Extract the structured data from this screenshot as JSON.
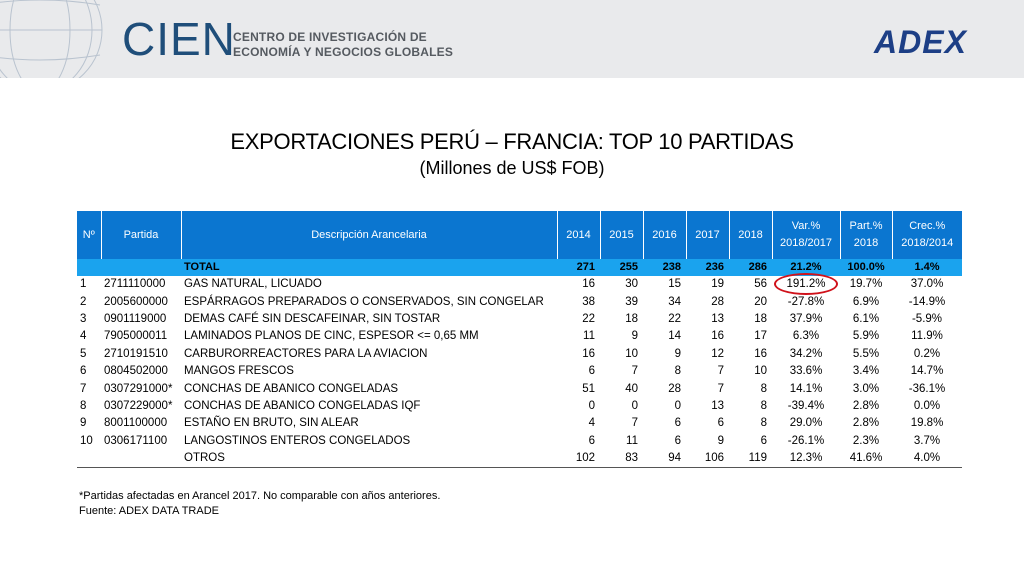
{
  "header": {
    "brand_name": "CIEN",
    "brand_sub_line1": "CENTRO DE INVESTIGACIÓN DE",
    "brand_sub_line2": "ECONOMÍA Y NEGOCIOS GLOBALES",
    "partner_name": "ADEX"
  },
  "title": "EXPORTACIONES PERÚ – FRANCIA: TOP 10 PARTIDAS",
  "subtitle": "(Millones de US$ FOB)",
  "table": {
    "columns": [
      "Nº",
      "Partida",
      "Descripción Arancelaria",
      "2014",
      "2015",
      "2016",
      "2017",
      "2018",
      "Var.%\n2018/2017",
      "Part.%\n2018",
      "Crec.%\n2018/2014"
    ],
    "total": {
      "label": "TOTAL",
      "v2014": "271",
      "v2015": "255",
      "v2016": "238",
      "v2017": "236",
      "v2018": "286",
      "var": "21.2%",
      "part": "100.0%",
      "crec": "1.4%"
    },
    "rows": [
      {
        "n": "1",
        "partida": "2711110000",
        "desc": "GAS NATURAL, LICUADO",
        "v2014": "16",
        "v2015": "30",
        "v2016": "15",
        "v2017": "19",
        "v2018": "56",
        "var": "191.2%",
        "part": "19.7%",
        "crec": "37.0%"
      },
      {
        "n": "2",
        "partida": "2005600000",
        "desc": "ESPÁRRAGOS PREPARADOS O CONSERVADOS, SIN CONGELAR",
        "v2014": "38",
        "v2015": "39",
        "v2016": "34",
        "v2017": "28",
        "v2018": "20",
        "var": "-27.8%",
        "part": "6.9%",
        "crec": "-14.9%"
      },
      {
        "n": "3",
        "partida": "0901119000",
        "desc": "DEMAS CAFÉ SIN DESCAFEINAR, SIN TOSTAR",
        "v2014": "22",
        "v2015": "18",
        "v2016": "22",
        "v2017": "13",
        "v2018": "18",
        "var": "37.9%",
        "part": "6.1%",
        "crec": "-5.9%"
      },
      {
        "n": "4",
        "partida": "7905000011",
        "desc": "LAMINADOS PLANOS DE CINC, ESPESOR <= 0,65 MM",
        "v2014": "11",
        "v2015": "9",
        "v2016": "14",
        "v2017": "16",
        "v2018": "17",
        "var": "6.3%",
        "part": "5.9%",
        "crec": "11.9%"
      },
      {
        "n": "5",
        "partida": "2710191510",
        "desc": "CARBURORREACTORES PARA LA AVIACION",
        "v2014": "16",
        "v2015": "10",
        "v2016": "9",
        "v2017": "12",
        "v2018": "16",
        "var": "34.2%",
        "part": "5.5%",
        "crec": "0.2%"
      },
      {
        "n": "6",
        "partida": "0804502000",
        "desc": "MANGOS FRESCOS",
        "v2014": "6",
        "v2015": "7",
        "v2016": "8",
        "v2017": "7",
        "v2018": "10",
        "var": "33.6%",
        "part": "3.4%",
        "crec": "14.7%"
      },
      {
        "n": "7",
        "partida": "0307291000*",
        "desc": "CONCHAS DE ABANICO CONGELADAS",
        "v2014": "51",
        "v2015": "40",
        "v2016": "28",
        "v2017": "7",
        "v2018": "8",
        "var": "14.1%",
        "part": "3.0%",
        "crec": "-36.1%"
      },
      {
        "n": "8",
        "partida": "0307229000*",
        "desc": "CONCHAS DE ABANICO CONGELADAS IQF",
        "v2014": "0",
        "v2015": "0",
        "v2016": "0",
        "v2017": "13",
        "v2018": "8",
        "var": "-39.4%",
        "part": "2.8%",
        "crec": "0.0%"
      },
      {
        "n": "9",
        "partida": "8001100000",
        "desc": "ESTAÑO EN BRUTO, SIN ALEAR",
        "v2014": "4",
        "v2015": "7",
        "v2016": "6",
        "v2017": "6",
        "v2018": "8",
        "var": "29.0%",
        "part": "2.8%",
        "crec": "19.8%"
      },
      {
        "n": "10",
        "partida": "0306171100",
        "desc": "LANGOSTINOS ENTEROS CONGELADOS",
        "v2014": "6",
        "v2015": "11",
        "v2016": "6",
        "v2017": "9",
        "v2018": "6",
        "var": "-26.1%",
        "part": "2.3%",
        "crec": "3.7%"
      }
    ],
    "otros": {
      "label": "OTROS",
      "v2014": "102",
      "v2015": "83",
      "v2016": "94",
      "v2017": "106",
      "v2018": "119",
      "var": "12.3%",
      "part": "41.6%",
      "crec": "4.0%"
    }
  },
  "notes": {
    "footnote": "*Partidas afectadas en Arancel 2017. No comparable con años anteriores.",
    "source": "Fuente: ADEX DATA TRADE"
  },
  "colors": {
    "header_blue": "#0b76d0",
    "total_blue": "#1aa3ee",
    "highlight_red": "#d0121b",
    "brand_blue": "#1f4e7a"
  }
}
